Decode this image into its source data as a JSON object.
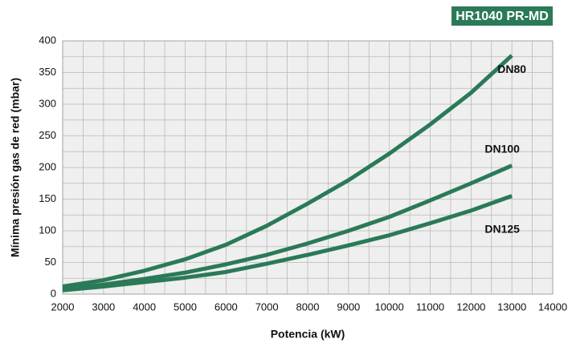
{
  "chart_data": {
    "type": "line",
    "title": "HR1040  PR-MD",
    "xlabel": "Potencia (kW)",
    "ylabel": "Mínima presión gas de red (mbar)",
    "x": [
      2000,
      3000,
      4000,
      5000,
      6000,
      7000,
      8000,
      9000,
      10000,
      11000,
      12000,
      13000
    ],
    "series": [
      {
        "name": "DN80",
        "color": "#2a7a58",
        "values": [
          12,
          22,
          37,
          55,
          78,
          108,
          143,
          180,
          222,
          268,
          318,
          377
        ]
      },
      {
        "name": "DN100",
        "color": "#2a7a58",
        "values": [
          8,
          15,
          24,
          34,
          47,
          62,
          80,
          100,
          122,
          148,
          175,
          203
        ]
      },
      {
        "name": "DN125",
        "color": "#2a7a58",
        "values": [
          6,
          12,
          19,
          26,
          35,
          48,
          62,
          77,
          93,
          112,
          132,
          155
        ]
      }
    ],
    "xlim": [
      2000,
      14000
    ],
    "xticks": [
      2000,
      3000,
      4000,
      5000,
      6000,
      7000,
      8000,
      9000,
      10000,
      11000,
      12000,
      13000,
      14000
    ],
    "ylim": [
      0,
      400
    ],
    "yticks": [
      0,
      50,
      100,
      150,
      200,
      250,
      300,
      350,
      400
    ],
    "grid": true
  }
}
